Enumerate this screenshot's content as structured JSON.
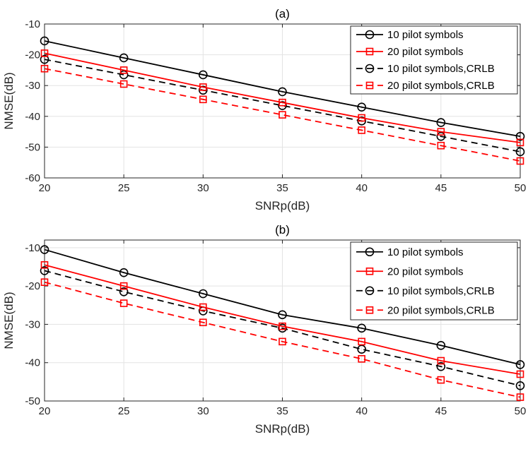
{
  "chart_data": [
    {
      "type": "line",
      "title": "(a)",
      "xlabel": "SNRp(dB)",
      "ylabel": "NMSE(dB)",
      "xlim": [
        20,
        50
      ],
      "ylim": [
        -60,
        -10
      ],
      "xticks": [
        "20",
        "25",
        "30",
        "35",
        "40",
        "45",
        "50"
      ],
      "yticks": [
        "-10",
        "-20",
        "-30",
        "-40",
        "-50",
        "-60"
      ],
      "grid": true,
      "legend_position": "top-right",
      "x": [
        20,
        25,
        30,
        35,
        40,
        45,
        50
      ],
      "series": [
        {
          "name": "10 pilot symbols",
          "color": "#000000",
          "marker": "circle",
          "dash": "solid",
          "values": [
            -15.5,
            -21,
            -26.5,
            -32,
            -37,
            -42,
            -46.5
          ]
        },
        {
          "name": "20 pilot symbols",
          "color": "#ff0000",
          "marker": "square",
          "dash": "solid",
          "values": [
            -19.5,
            -25,
            -30.5,
            -35.5,
            -40.5,
            -45,
            -48.5
          ]
        },
        {
          "name": "10 pilot symbols,CRLB",
          "color": "#000000",
          "marker": "circle",
          "dash": "dashed",
          "values": [
            -21.5,
            -26.5,
            -31.5,
            -36.5,
            -41.5,
            -46.5,
            -51.5
          ]
        },
        {
          "name": "20 pilot symbols,CRLB",
          "color": "#ff0000",
          "marker": "square",
          "dash": "dashed",
          "values": [
            -24.5,
            -29.5,
            -34.5,
            -39.5,
            -44.5,
            -49.5,
            -54.5
          ]
        }
      ]
    },
    {
      "type": "line",
      "title": "(b)",
      "xlabel": "SNRp(dB)",
      "ylabel": "NMSE(dB)",
      "xlim": [
        20,
        50
      ],
      "ylim": [
        -50,
        -8
      ],
      "xticks": [
        "20",
        "25",
        "30",
        "35",
        "40",
        "45",
        "50"
      ],
      "yticks": [
        "-10",
        "-20",
        "-30",
        "-40",
        "-50"
      ],
      "grid": true,
      "legend_position": "top-right",
      "x": [
        20,
        25,
        30,
        35,
        40,
        45,
        50
      ],
      "series": [
        {
          "name": "10 pilot symbols",
          "color": "#000000",
          "marker": "circle",
          "dash": "solid",
          "values": [
            -10.5,
            -16.5,
            -22,
            -27.5,
            -31,
            -35.5,
            -40.5
          ]
        },
        {
          "name": "20 pilot symbols",
          "color": "#ff0000",
          "marker": "square",
          "dash": "solid",
          "values": [
            -14.5,
            -20,
            -25.5,
            -30.5,
            -34.5,
            -39.5,
            -43
          ]
        },
        {
          "name": "10 pilot symbols,CRLB",
          "color": "#000000",
          "marker": "circle",
          "dash": "dashed",
          "values": [
            -16,
            -21.5,
            -26.5,
            -31,
            -36.5,
            -41,
            -46
          ]
        },
        {
          "name": "20 pilot symbols,CRLB",
          "color": "#ff0000",
          "marker": "square",
          "dash": "dashed",
          "values": [
            -19,
            -24.5,
            -29.5,
            -34.5,
            -39,
            -44.5,
            -49
          ]
        }
      ]
    }
  ]
}
